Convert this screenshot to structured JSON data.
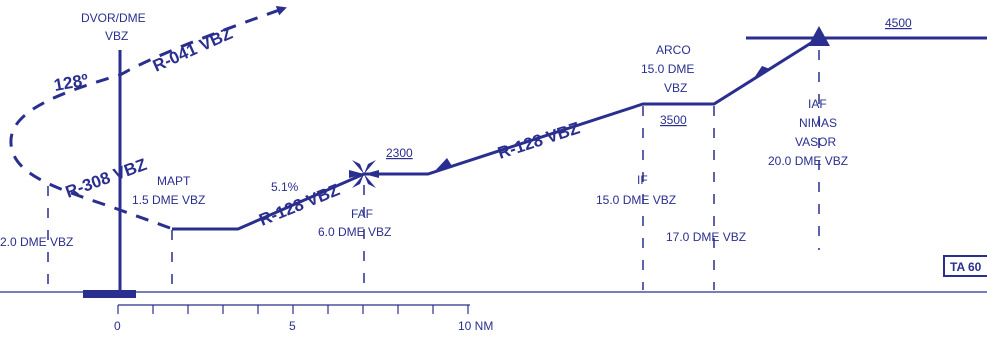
{
  "colors": {
    "ink": "#2a2f8f",
    "background": "#ffffff"
  },
  "navaid": {
    "type": "DVOR/DME",
    "ident": "VBZ"
  },
  "radials": {
    "outbound": "R-041 VBZ",
    "turn": "R-308 VBZ",
    "final": "R-128 VBZ",
    "intermediate": "R-128 VBZ"
  },
  "course_label": "128º",
  "descent_gradient": "5.1%",
  "fixes": {
    "mapt": {
      "name": "MAPT",
      "distance": "1.5 DME VBZ"
    },
    "faf": {
      "name": "FAF",
      "distance": "6.0 DME VBZ",
      "altitude": "2300"
    },
    "arco": {
      "name": "ARCO",
      "distance_line1": "15.0 DME",
      "ident": "VBZ",
      "altitude": "3500"
    },
    "if": {
      "name": "IF",
      "distance": "15.0 DME VBZ"
    },
    "dme17": {
      "distance": "17.0 DME VBZ"
    },
    "iaf": {
      "name": "IAF",
      "waypoint": "NIMAS",
      "vor": "VASOR",
      "distance": "20.0 DME VBZ",
      "altitude": "4500"
    },
    "left_dme": {
      "distance": "2.0 DME VBZ"
    }
  },
  "scale": {
    "tick_0": "0",
    "tick_5": "5",
    "tick_10": "10 NM"
  },
  "ta_box": "TA 60"
}
